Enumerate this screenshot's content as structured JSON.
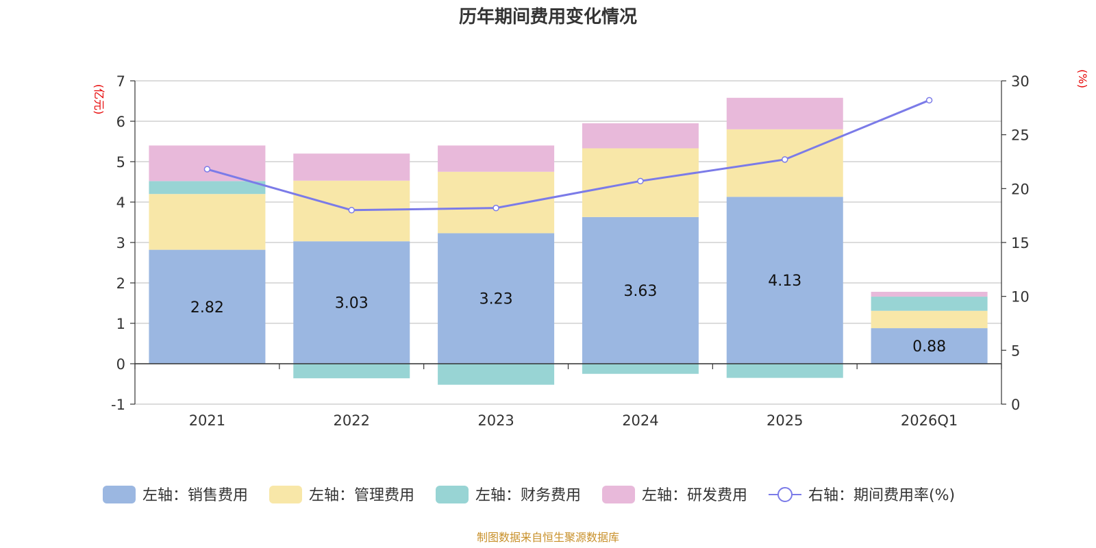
{
  "chart_data": {
    "type": "bar",
    "stacked": true,
    "title": "历年期间费用变化情况",
    "categories": [
      "2021",
      "2022",
      "2023",
      "2024",
      "2025",
      "2026Q1"
    ],
    "left_axis": {
      "unit": "(亿元)",
      "ylim": [
        -1,
        7
      ],
      "ticks": [
        "-1",
        "0",
        "1",
        "2",
        "3",
        "4",
        "5",
        "6",
        "7"
      ]
    },
    "right_axis": {
      "unit": "(%)",
      "ylim": [
        0,
        30
      ],
      "ticks": [
        "0",
        "5",
        "10",
        "15",
        "20",
        "25",
        "30"
      ]
    },
    "series": [
      {
        "name": "左轴：销售费用",
        "axis": "left",
        "color": "#9bb7e1",
        "values": [
          2.82,
          3.03,
          3.23,
          3.63,
          4.13,
          0.88
        ],
        "labels": [
          "2.82",
          "3.03",
          "3.23",
          "3.63",
          "4.13",
          "0.88"
        ]
      },
      {
        "name": "左轴：管理费用",
        "axis": "left",
        "color": "#f8e7a8",
        "values": [
          1.38,
          1.5,
          1.52,
          1.7,
          1.67,
          0.43
        ]
      },
      {
        "name": "左轴：财务费用",
        "axis": "left",
        "color": "#98d4d4",
        "values": [
          0.32,
          -0.36,
          -0.52,
          -0.25,
          -0.35,
          0.35
        ]
      },
      {
        "name": "左轴：研发费用",
        "axis": "left",
        "color": "#e8b9da",
        "values": [
          0.88,
          0.67,
          0.65,
          0.62,
          0.78,
          0.12
        ]
      },
      {
        "name": "右轴：期间费用率(%)",
        "axis": "right",
        "type": "line",
        "color": "#7b7be8",
        "values": [
          21.8,
          18.0,
          18.2,
          20.7,
          22.7,
          28.2
        ]
      }
    ],
    "source": "制图数据来自恒生聚源数据库"
  }
}
